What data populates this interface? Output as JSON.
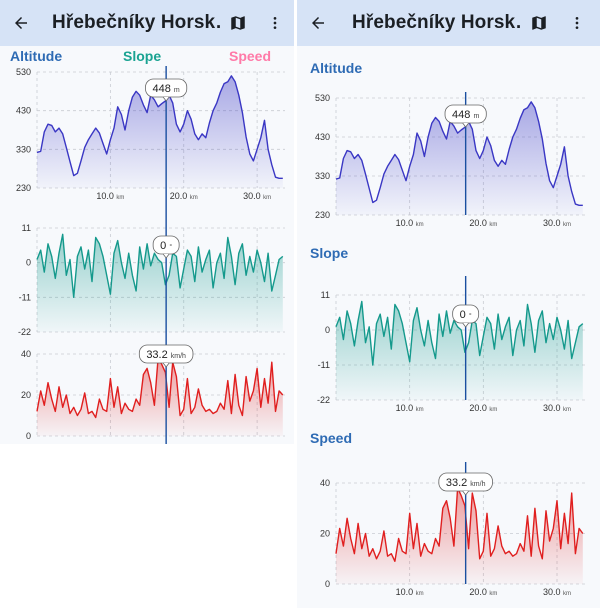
{
  "app": {
    "title": "Hřebečníky Horsk…",
    "back_icon": "arrow-left-icon",
    "map_icon": "map-icon",
    "more_icon": "more-vertical-icon"
  },
  "legend": {
    "altitude": "Altitude",
    "slope": "Slope",
    "speed": "Speed",
    "altitude_color": "#2e6bb4",
    "slope_color": "#1aa392",
    "speed_color": "#ff7aa8"
  },
  "colors": {
    "altitude_line": "#3a37c4",
    "slope_line": "#14998c",
    "speed_line": "#e01f1f",
    "cursor": "#1a4fa0",
    "appbar": "#d6e3f6"
  },
  "cursor": {
    "distance_km": 17.6,
    "altitude_label": "448",
    "altitude_unit": "m",
    "slope_label": "0",
    "slope_unit": "°",
    "speed_label": "33.2",
    "speed_unit": "km/h"
  },
  "chart_data": [
    {
      "type": "area",
      "name": "altitude",
      "title": "Altitude",
      "xlabel_unit": "km",
      "xlim": [
        0,
        33.8
      ],
      "ylim": [
        230,
        530
      ],
      "yticks": [
        230,
        330,
        430,
        530
      ],
      "xticks": [
        10.0,
        20.0,
        30.0
      ],
      "x": [
        0,
        0.5,
        1,
        1.5,
        2,
        2.5,
        3,
        3.5,
        4,
        4.5,
        5,
        5.5,
        6,
        6.5,
        7,
        7.5,
        8,
        8.5,
        9,
        9.5,
        10,
        10.5,
        11,
        11.5,
        12,
        12.5,
        13,
        13.5,
        14,
        14.5,
        15,
        15.5,
        16,
        16.5,
        17,
        17.5,
        18,
        18.5,
        19,
        19.5,
        20,
        20.5,
        21,
        21.5,
        22,
        22.5,
        23,
        23.5,
        24,
        24.5,
        25,
        25.5,
        26,
        26.5,
        27,
        27.5,
        28,
        28.5,
        29,
        29.5,
        30,
        30.5,
        31,
        31.5,
        32,
        32.5,
        33,
        33.5
      ],
      "y": [
        322,
        325,
        375,
        395,
        392,
        375,
        385,
        370,
        335,
        298,
        262,
        268,
        300,
        335,
        355,
        370,
        385,
        372,
        345,
        318,
        355,
        385,
        440,
        420,
        380,
        430,
        465,
        480,
        470,
        445,
        425,
        470,
        458,
        440,
        448,
        455,
        470,
        450,
        395,
        375,
        395,
        430,
        408,
        370,
        355,
        370,
        360,
        398,
        430,
        450,
        478,
        500,
        505,
        520,
        505,
        470,
        425,
        362,
        318,
        300,
        330,
        360,
        405,
        330,
        290,
        258,
        255,
        255
      ]
    },
    {
      "type": "area",
      "name": "slope",
      "title": "Slope",
      "xlabel_unit": "km",
      "xlim": [
        0,
        33.8
      ],
      "ylim": [
        -22,
        11
      ],
      "yticks": [
        -22,
        -11,
        0,
        11
      ],
      "xticks": [
        10.0,
        20.0,
        30.0
      ],
      "x": [
        0,
        0.5,
        1,
        1.5,
        2,
        2.5,
        3,
        3.5,
        4,
        4.5,
        5,
        5.5,
        6,
        6.5,
        7,
        7.5,
        8,
        8.5,
        9,
        9.5,
        10,
        10.5,
        11,
        11.5,
        12,
        12.5,
        13,
        13.5,
        14,
        14.5,
        15,
        15.5,
        16,
        16.5,
        17,
        17.5,
        18,
        18.5,
        19,
        19.5,
        20,
        20.5,
        21,
        21.5,
        22,
        22.5,
        23,
        23.5,
        24,
        24.5,
        25,
        25.5,
        26,
        26.5,
        27,
        27.5,
        28,
        28.5,
        29,
        29.5,
        30,
        30.5,
        31,
        31.5,
        32,
        32.5,
        33,
        33.5
      ],
      "y": [
        1,
        4,
        -3,
        6,
        2,
        -5,
        3,
        9,
        -4,
        1,
        -11,
        2,
        5,
        -2,
        4,
        -6,
        8,
        6,
        2,
        -4,
        -10,
        3,
        7,
        0,
        -5,
        3,
        -4,
        -9,
        5,
        -2,
        6,
        -1,
        3,
        1,
        0,
        -7,
        -4,
        3,
        2,
        -8,
        -2,
        4,
        2,
        -6,
        5,
        -3,
        1,
        4,
        -8,
        0,
        3,
        -5,
        8,
        2,
        -7,
        3,
        6,
        -4,
        2,
        -3,
        4,
        0,
        -6,
        3,
        -9,
        -4,
        1,
        2
      ]
    },
    {
      "type": "area",
      "name": "speed",
      "title": "Speed",
      "xlabel_unit": "km",
      "xlim": [
        0,
        33.8
      ],
      "ylim": [
        0,
        40
      ],
      "yticks": [
        0,
        20,
        40
      ],
      "xticks": [
        10.0,
        20.0,
        30.0
      ],
      "x": [
        0,
        0.5,
        1,
        1.5,
        2,
        2.5,
        3,
        3.5,
        4,
        4.5,
        5,
        5.5,
        6,
        6.5,
        7,
        7.5,
        8,
        8.5,
        9,
        9.5,
        10,
        10.5,
        11,
        11.5,
        12,
        12.5,
        13,
        13.5,
        14,
        14.5,
        15,
        15.5,
        16,
        16.5,
        17,
        17.5,
        18,
        18.5,
        19,
        19.5,
        20,
        20.5,
        21,
        21.5,
        22,
        22.5,
        23,
        23.5,
        24,
        24.5,
        25,
        25.5,
        26,
        26.5,
        27,
        27.5,
        28,
        28.5,
        29,
        29.5,
        30,
        30.5,
        31,
        31.5,
        32,
        32.5,
        33,
        33.5
      ],
      "y": [
        12,
        22,
        15,
        26,
        18,
        12,
        24,
        14,
        20,
        11,
        14,
        10,
        13,
        21,
        11,
        12,
        9,
        18,
        13,
        12,
        28,
        14,
        24,
        11,
        16,
        13,
        12,
        18,
        15,
        30,
        33,
        26,
        15,
        38,
        35,
        31,
        14,
        36,
        29,
        10,
        13,
        28,
        11,
        14,
        23,
        15,
        12,
        13,
        11,
        12,
        16,
        13,
        27,
        11,
        30,
        15,
        10,
        29,
        17,
        22,
        33,
        14,
        28,
        16,
        36,
        12,
        22,
        20
      ]
    }
  ]
}
